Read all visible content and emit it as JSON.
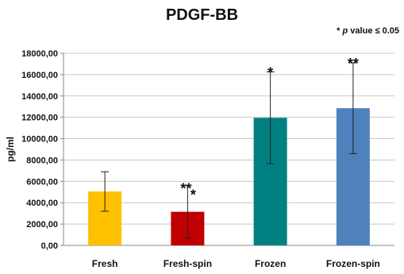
{
  "chart_data": {
    "type": "bar",
    "title": "PDGF-BB",
    "annotation": {
      "prefix": "* ",
      "italic": "p",
      "suffix": " value ≤ 0.05"
    },
    "ylabel": "pg/ml",
    "xlabel": "",
    "ylim": [
      0,
      18000
    ],
    "yticks": [
      0,
      2000,
      4000,
      6000,
      8000,
      10000,
      12000,
      14000,
      16000,
      18000
    ],
    "ytick_labels": [
      "0,00",
      "2000,00",
      "4000,00",
      "6000,00",
      "8000,00",
      "10000,00",
      "12000,00",
      "14000,00",
      "16000,00",
      "18000,00"
    ],
    "grid": true,
    "legend": "none",
    "categories": [
      "Fresh",
      "Fresh-spin",
      "Frozen",
      "Frozen-spin"
    ],
    "values": [
      5050,
      3150,
      11950,
      12850
    ],
    "error": [
      1850,
      2450,
      4300,
      4250
    ],
    "colors": [
      "#FFC000",
      "#C00000",
      "#008080",
      "#4F81BD"
    ],
    "significance": [
      "",
      "***",
      "*",
      "**"
    ]
  }
}
